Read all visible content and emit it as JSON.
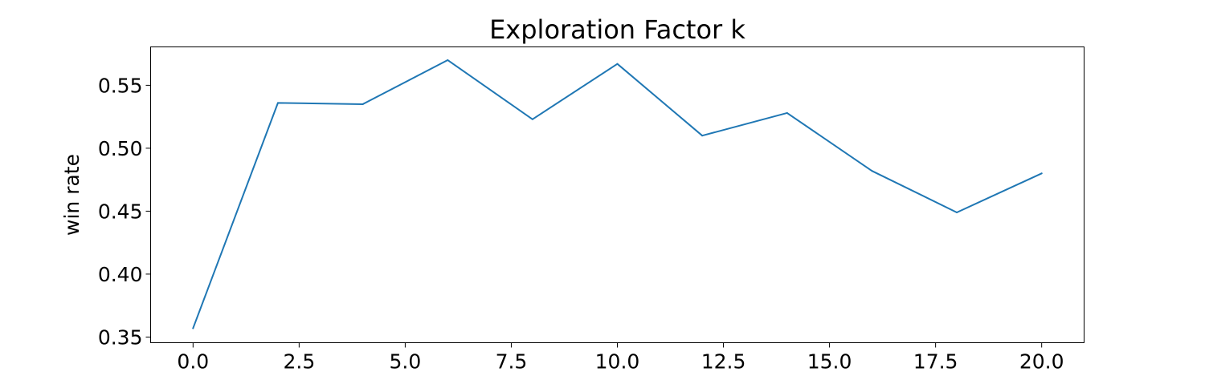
{
  "chart_data": {
    "type": "line",
    "title": "Exploration Factor k",
    "xlabel": "",
    "ylabel": "win rate",
    "xlim": [
      -1,
      21
    ],
    "ylim": [
      0.3455,
      0.5805
    ],
    "xticks": [
      0.0,
      2.5,
      5.0,
      7.5,
      10.0,
      12.5,
      15.0,
      17.5,
      20.0
    ],
    "xtick_labels": [
      "0.0",
      "2.5",
      "5.0",
      "7.5",
      "10.0",
      "12.5",
      "15.0",
      "17.5",
      "20.0"
    ],
    "yticks": [
      0.35,
      0.4,
      0.45,
      0.5,
      0.55
    ],
    "ytick_labels": [
      "0.35",
      "0.40",
      "0.45",
      "0.50",
      "0.55"
    ],
    "grid": false,
    "legend": "none",
    "series": [
      {
        "color": "#1f77b4",
        "x": [
          0,
          2,
          4,
          6,
          8,
          10,
          12,
          14,
          16,
          18,
          20
        ],
        "y": [
          0.357,
          0.536,
          0.535,
          0.57,
          0.523,
          0.567,
          0.51,
          0.528,
          0.482,
          0.449,
          0.48
        ]
      }
    ]
  }
}
